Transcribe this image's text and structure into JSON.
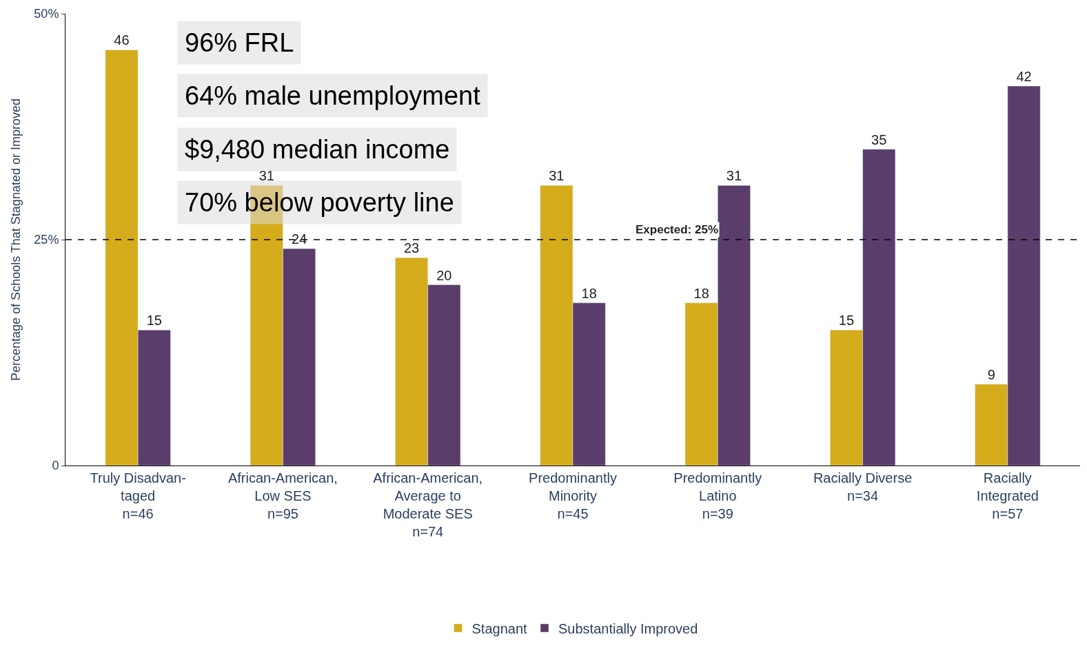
{
  "chart_data": {
    "type": "bar",
    "ylabel": "Percentage of Schools That Stagnated or Improved",
    "categories": [
      "Truly Disadvan-\ntaged\nn=46",
      "African-American,\nLow SES\nn=95",
      "African-American,\nAverage to\nModerate SES\nn=74",
      "Predominantly\nMinority\nn=45",
      "Predominantly\nLatino\nn=39",
      "Racially Diverse\nn=34",
      "Racially\nIntegrated\nn=57"
    ],
    "series": [
      {
        "name": "Stagnant",
        "color": "#d4ac1c",
        "values": [
          46,
          31,
          23,
          31,
          18,
          15,
          9
        ]
      },
      {
        "name": "Substantially Improved",
        "color": "#5a3d6b",
        "values": [
          15,
          24,
          20,
          18,
          31,
          35,
          42
        ]
      }
    ],
    "ylim": [
      0,
      50
    ],
    "yticks": [
      0,
      {
        "value": 25,
        "label": "25%"
      },
      {
        "value": 50,
        "label": "50%"
      }
    ],
    "ref_lines": [
      {
        "axis": "y",
        "value": 25,
        "label": "Expected: 25%",
        "line_style": "dashed",
        "color": "#000000"
      }
    ],
    "annotations": [
      "96% FRL",
      "64% male unemployment",
      "$9,480 median income",
      "70% below poverty line"
    ],
    "data_labels": true,
    "legend": "bottom"
  }
}
